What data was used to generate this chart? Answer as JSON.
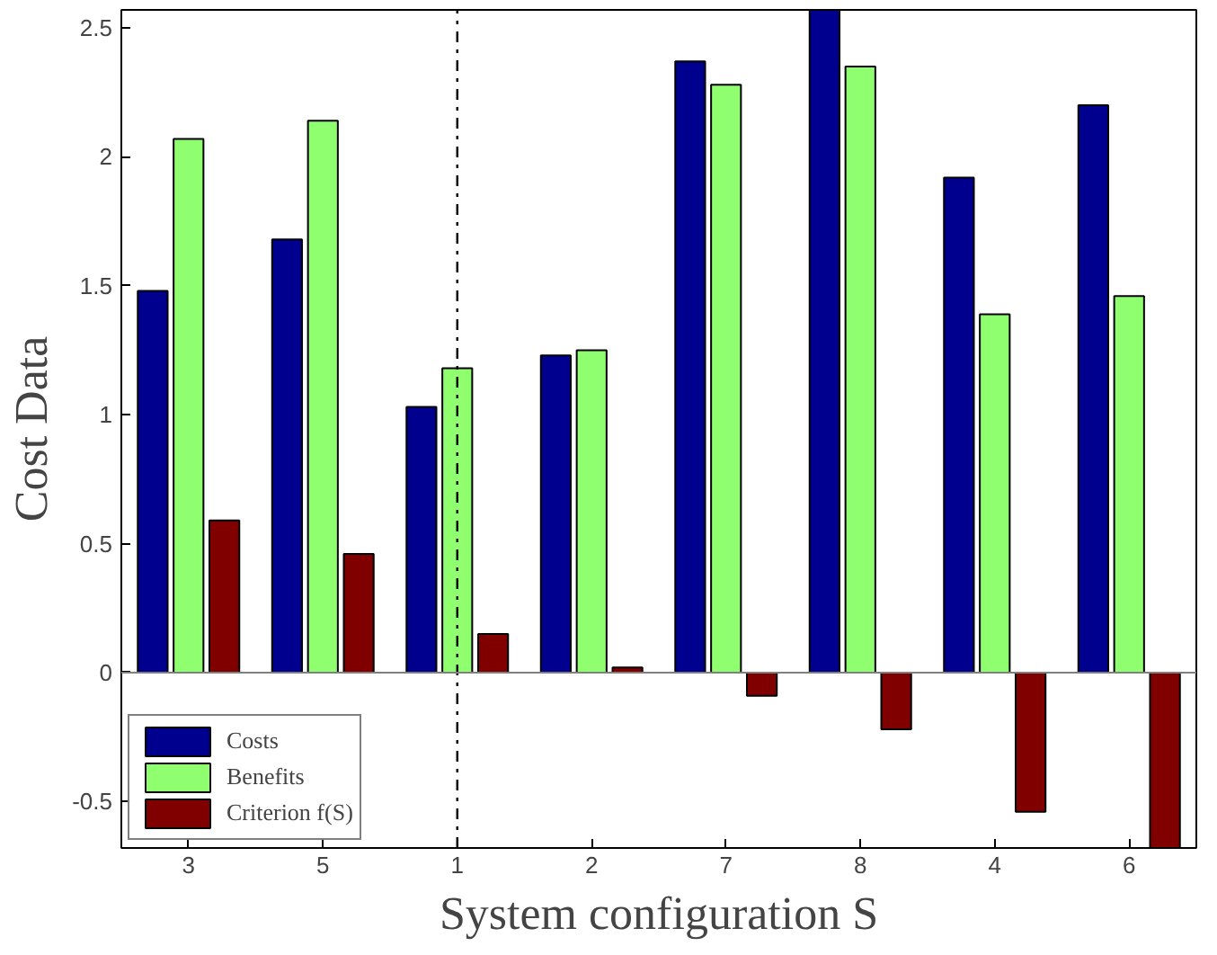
{
  "chart_data": {
    "type": "bar",
    "xlabel": "System configuration S",
    "ylabel": "Cost Data",
    "categories": [
      "3",
      "5",
      "1",
      "2",
      "7",
      "8",
      "4",
      "6"
    ],
    "series": [
      {
        "name": "Costs",
        "color": "#00008f",
        "values": [
          1.48,
          1.68,
          1.03,
          1.23,
          2.37,
          2.57,
          1.92,
          2.2
        ]
      },
      {
        "name": "Benefits",
        "color": "#8fff70",
        "values": [
          2.07,
          2.14,
          1.18,
          1.25,
          2.28,
          2.35,
          1.39,
          1.46
        ]
      },
      {
        "name": "Criterion f(S)",
        "color": "#800000",
        "values": [
          0.59,
          0.46,
          0.15,
          0.02,
          -0.09,
          -0.22,
          -0.54,
          -0.68
        ]
      }
    ],
    "ylim": [
      -0.68,
      2.57
    ],
    "yticks": [
      -0.5,
      0,
      0.5,
      1,
      1.5,
      2,
      2.5
    ],
    "ref_lines": [
      {
        "axis": "x",
        "value": "1",
        "line_style": "dashdot",
        "color": "#000000"
      }
    ],
    "grid": false,
    "legend": "bottom left"
  }
}
